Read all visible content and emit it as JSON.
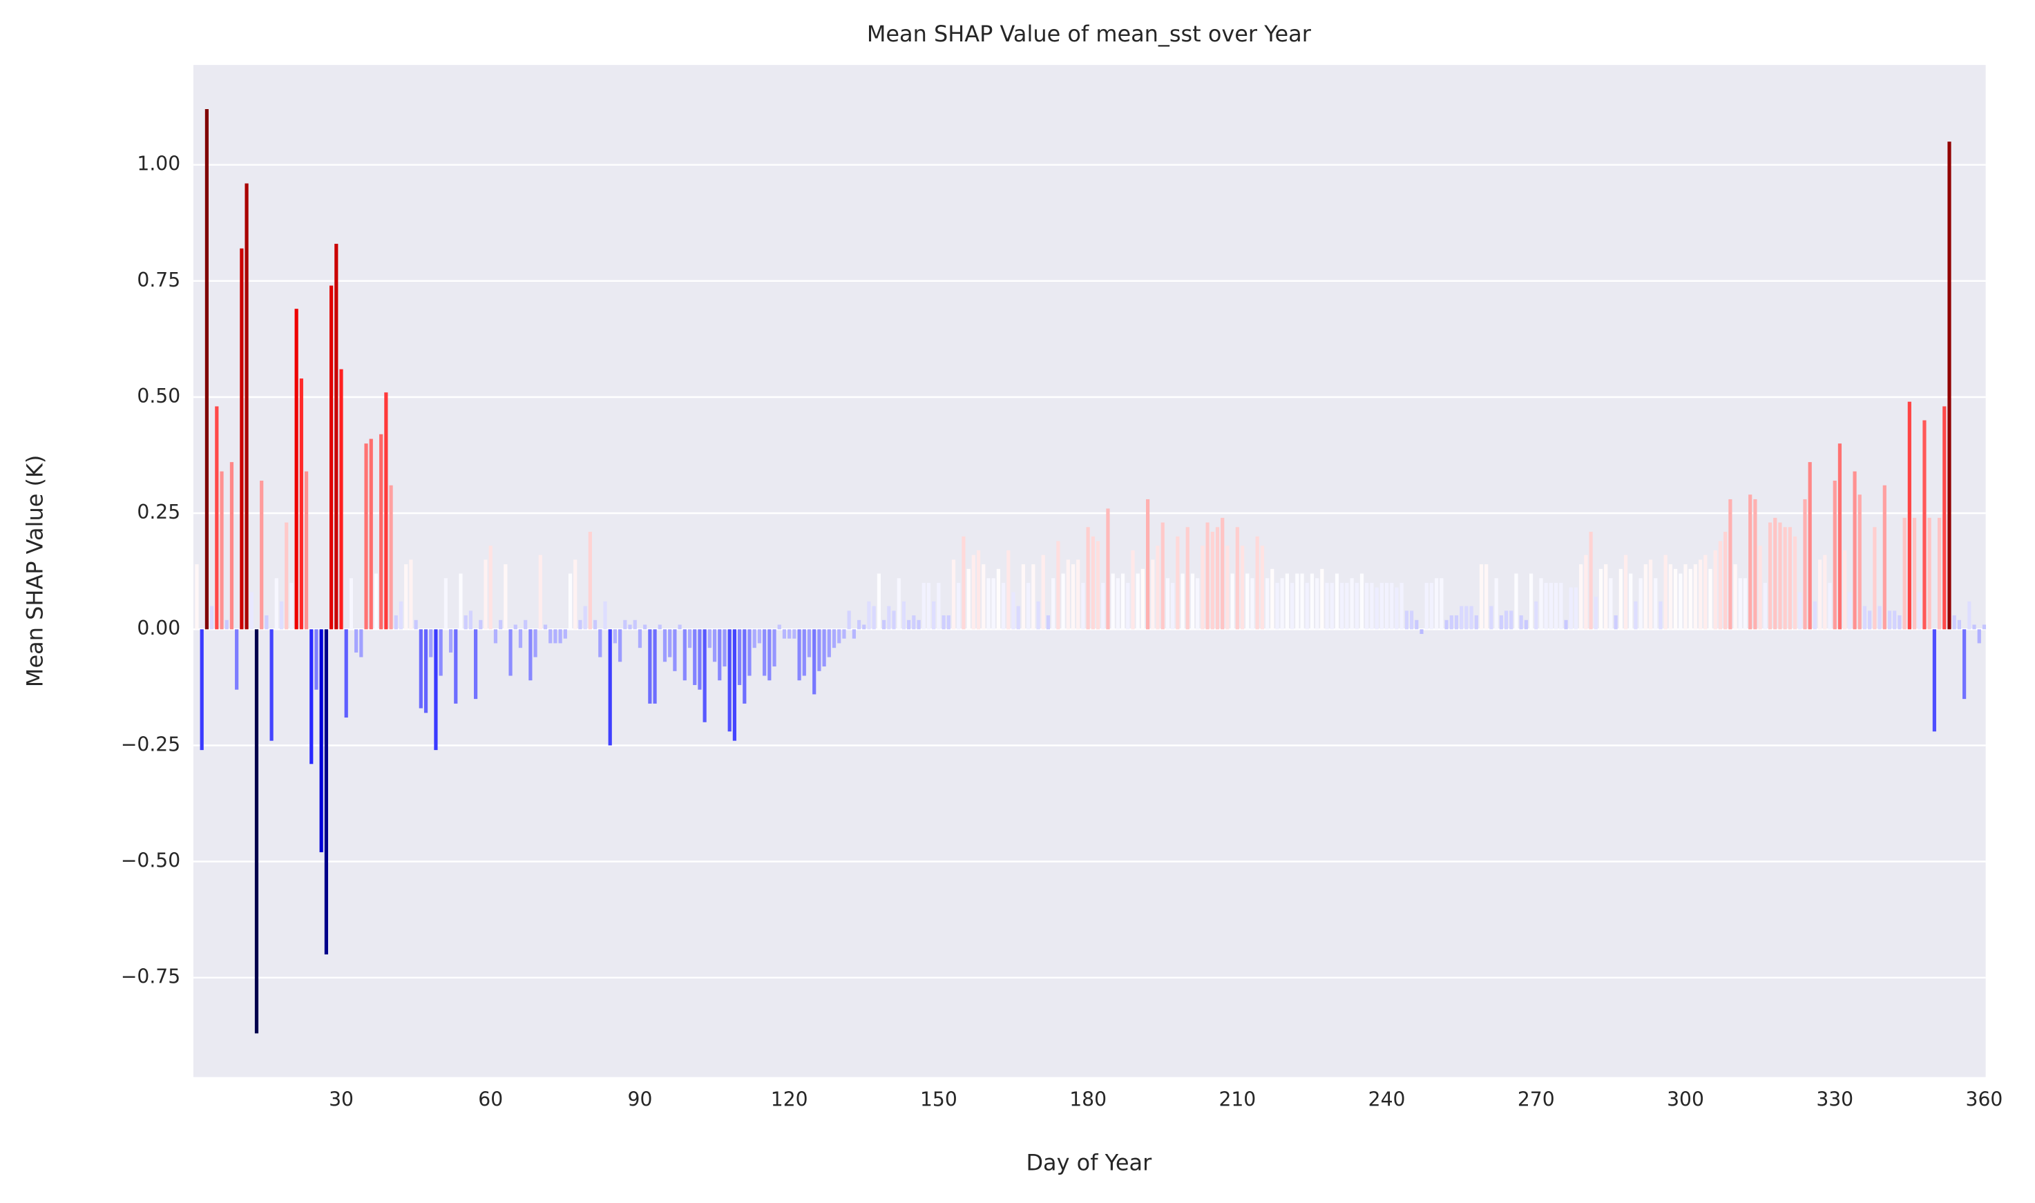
{
  "chart_data": {
    "type": "bar",
    "title": "Mean SHAP Value of mean_sst over Year",
    "x_label": "Day of Year",
    "y_label": "Mean SHAP Value (K)",
    "colormap": "seismic",
    "grid": true,
    "x": [
      1,
      2,
      3,
      4,
      5,
      6,
      7,
      8,
      9,
      10,
      11,
      12,
      13,
      14,
      15,
      16,
      17,
      18,
      19,
      20,
      21,
      22,
      23,
      24,
      25,
      26,
      27,
      28,
      29,
      30,
      31,
      32,
      33,
      34,
      35,
      36,
      37,
      38,
      39,
      40,
      41,
      42,
      43,
      44,
      45,
      46,
      47,
      48,
      49,
      50,
      51,
      52,
      53,
      54,
      55,
      56,
      57,
      58,
      59,
      60,
      61,
      62,
      63,
      64,
      65,
      66,
      67,
      68,
      69,
      70,
      71,
      72,
      73,
      74,
      75,
      76,
      77,
      78,
      79,
      80,
      81,
      82,
      83,
      84,
      85,
      86,
      87,
      88,
      89,
      90,
      91,
      92,
      93,
      94,
      95,
      96,
      97,
      98,
      99,
      100,
      101,
      102,
      103,
      104,
      105,
      106,
      107,
      108,
      109,
      110,
      111,
      112,
      113,
      114,
      115,
      116,
      117,
      118,
      119,
      120,
      121,
      122,
      123,
      124,
      125,
      126,
      127,
      128,
      129,
      130,
      131,
      132,
      133,
      134,
      135,
      136,
      137,
      138,
      139,
      140,
      141,
      142,
      143,
      144,
      145,
      146,
      147,
      148,
      149,
      150,
      151,
      152,
      153,
      154,
      155,
      156,
      157,
      158,
      159,
      160,
      161,
      162,
      163,
      164,
      165,
      166,
      167,
      168,
      169,
      170,
      171,
      172,
      173,
      174,
      175,
      176,
      177,
      178,
      179,
      180,
      181,
      182,
      183,
      184,
      185,
      186,
      187,
      188,
      189,
      190,
      191,
      192,
      193,
      194,
      195,
      196,
      197,
      198,
      199,
      200,
      201,
      202,
      203,
      204,
      205,
      206,
      207,
      208,
      209,
      210,
      211,
      212,
      213,
      214,
      215,
      216,
      217,
      218,
      219,
      220,
      221,
      222,
      223,
      224,
      225,
      226,
      227,
      228,
      229,
      230,
      231,
      232,
      233,
      234,
      235,
      236,
      237,
      238,
      239,
      240,
      241,
      242,
      243,
      244,
      245,
      246,
      247,
      248,
      249,
      250,
      251,
      252,
      253,
      254,
      255,
      256,
      257,
      258,
      259,
      260,
      261,
      262,
      263,
      264,
      265,
      266,
      267,
      268,
      269,
      270,
      271,
      272,
      273,
      274,
      275,
      276,
      277,
      278,
      279,
      280,
      281,
      282,
      283,
      284,
      285,
      286,
      287,
      288,
      289,
      290,
      291,
      292,
      293,
      294,
      295,
      296,
      297,
      298,
      299,
      300,
      301,
      302,
      303,
      304,
      305,
      306,
      307,
      308,
      309,
      310,
      311,
      312,
      313,
      314,
      315,
      316,
      317,
      318,
      319,
      320,
      321,
      322,
      323,
      324,
      325,
      326,
      327,
      328,
      329,
      330,
      331,
      332,
      333,
      334,
      335,
      336,
      337,
      338,
      339,
      340,
      341,
      342,
      343,
      344,
      345,
      346,
      347,
      348,
      349,
      350,
      351,
      352,
      353,
      354,
      355,
      356,
      357,
      358,
      359,
      360
    ],
    "values": [
      0.14,
      -0.26,
      1.12,
      0.05,
      0.48,
      0.34,
      0.02,
      0.36,
      -0.13,
      0.82,
      0.96,
      0.08,
      -0.87,
      0.32,
      0.03,
      -0.24,
      0.11,
      0.06,
      0.23,
      0.1,
      0.69,
      0.54,
      0.34,
      -0.29,
      -0.13,
      -0.48,
      -0.7,
      0.74,
      0.83,
      0.56,
      -0.19,
      0.11,
      -0.05,
      -0.06,
      0.4,
      0.41,
      0.12,
      0.42,
      0.51,
      0.31,
      0.03,
      0.06,
      0.14,
      0.15,
      0.02,
      -0.17,
      -0.18,
      -0.06,
      -0.26,
      -0.1,
      0.11,
      -0.05,
      -0.16,
      0.12,
      0.03,
      0.04,
      -0.15,
      0.02,
      0.15,
      0.18,
      -0.03,
      0.02,
      0.14,
      -0.1,
      0.01,
      -0.04,
      0.02,
      -0.11,
      -0.06,
      0.16,
      0.01,
      -0.03,
      -0.03,
      -0.03,
      -0.02,
      0.12,
      0.15,
      0.02,
      0.05,
      0.21,
      0.02,
      -0.06,
      0.06,
      -0.25,
      -0.03,
      -0.07,
      0.02,
      0.01,
      0.02,
      -0.04,
      0.01,
      -0.16,
      -0.16,
      0.01,
      -0.07,
      -0.06,
      -0.09,
      0.01,
      -0.11,
      -0.04,
      -0.12,
      -0.13,
      -0.2,
      -0.04,
      -0.07,
      -0.11,
      -0.08,
      -0.22,
      -0.24,
      -0.12,
      -0.16,
      -0.1,
      -0.04,
      -0.03,
      -0.1,
      -0.11,
      -0.08,
      0.01,
      -0.02,
      -0.02,
      -0.02,
      -0.11,
      -0.1,
      -0.06,
      -0.14,
      -0.09,
      -0.08,
      -0.06,
      -0.04,
      -0.03,
      -0.02,
      0.04,
      -0.02,
      0.02,
      0.01,
      0.06,
      0.05,
      0.12,
      0.02,
      0.05,
      0.04,
      0.11,
      0.06,
      0.02,
      0.03,
      0.02,
      0.1,
      0.1,
      0.06,
      0.1,
      0.03,
      0.03,
      0.15,
      0.1,
      0.2,
      0.13,
      0.16,
      0.17,
      0.14,
      0.11,
      0.11,
      0.13,
      0.1,
      0.17,
      0.08,
      0.05,
      0.14,
      0.1,
      0.14,
      0.06,
      0.16,
      0.03,
      0.11,
      0.19,
      0.12,
      0.15,
      0.14,
      0.15,
      0.1,
      0.22,
      0.2,
      0.19,
      0.1,
      0.26,
      0.12,
      0.11,
      0.12,
      0.1,
      0.17,
      0.12,
      0.13,
      0.28,
      0.15,
      0.18,
      0.23,
      0.11,
      0.1,
      0.2,
      0.12,
      0.22,
      0.12,
      0.11,
      0.18,
      0.23,
      0.21,
      0.22,
      0.24,
      0.18,
      0.12,
      0.22,
      0.18,
      0.12,
      0.11,
      0.2,
      0.18,
      0.11,
      0.13,
      0.1,
      0.11,
      0.12,
      0.1,
      0.12,
      0.12,
      0.1,
      0.12,
      0.11,
      0.13,
      0.1,
      0.1,
      0.12,
      0.1,
      0.1,
      0.11,
      0.1,
      0.12,
      0.1,
      0.1,
      0.09,
      0.1,
      0.1,
      0.1,
      0.09,
      0.1,
      0.04,
      0.04,
      0.02,
      -0.01,
      0.1,
      0.1,
      0.11,
      0.11,
      0.02,
      0.03,
      0.03,
      0.05,
      0.05,
      0.05,
      0.03,
      0.14,
      0.14,
      0.05,
      0.11,
      0.03,
      0.04,
      0.04,
      0.12,
      0.03,
      0.02,
      0.12,
      0.06,
      0.11,
      0.1,
      0.1,
      0.1,
      0.1,
      0.02,
      0.09,
      0.09,
      0.14,
      0.16,
      0.21,
      0.07,
      0.13,
      0.14,
      0.11,
      0.03,
      0.13,
      0.16,
      0.12,
      0.06,
      0.11,
      0.14,
      0.15,
      0.11,
      0.06,
      0.16,
      0.14,
      0.13,
      0.12,
      0.14,
      0.13,
      0.14,
      0.15,
      0.16,
      0.13,
      0.17,
      0.19,
      0.21,
      0.28,
      0.14,
      0.11,
      0.11,
      0.29,
      0.28,
      0.18,
      0.1,
      0.23,
      0.24,
      0.23,
      0.22,
      0.22,
      0.2,
      0.08,
      0.28,
      0.36,
      0.06,
      0.15,
      0.16,
      0.1,
      0.32,
      0.4,
      0.17,
      0.08,
      0.34,
      0.29,
      0.05,
      0.04,
      0.22,
      0.05,
      0.31,
      0.04,
      0.04,
      0.03,
      0.24,
      0.49,
      0.24,
      0.08,
      0.45,
      0.24,
      -0.22,
      0.24,
      0.48,
      1.05,
      0.03,
      0.02,
      -0.15,
      0.06,
      0.01,
      -0.03,
      0.01
    ],
    "xlim": [
      0.3,
      360.3
    ],
    "xticks": [
      30,
      60,
      90,
      120,
      150,
      180,
      210,
      240,
      270,
      300,
      330,
      360
    ],
    "ylim": [
      -0.964,
      1.215
    ],
    "yticks": [
      {
        "value": -0.75,
        "label": "−0.75"
      },
      {
        "value": -0.5,
        "label": "−0.50"
      },
      {
        "value": -0.25,
        "label": "−0.25"
      },
      {
        "value": 0,
        "label": "0.00"
      },
      0.25,
      {
        "value": 0.5,
        "label": "0.50"
      },
      0.75,
      {
        "value": 1,
        "label": "1.00"
      }
    ]
  }
}
